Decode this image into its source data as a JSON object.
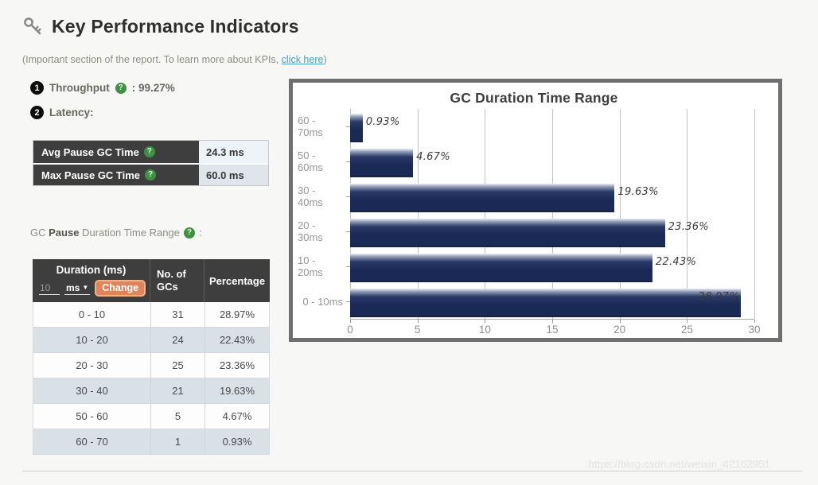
{
  "page": {
    "title": "Key Performance Indicators",
    "subtitle_prefix": "(Important section of the report. To learn more about KPIs, ",
    "subtitle_link": "click here",
    "subtitle_suffix": ")",
    "watermark": "https://blog.csdn.net/weixin_42162951"
  },
  "kpi": {
    "badge1": "1",
    "badge2": "2",
    "throughput_label": "Throughput",
    "throughput_value": ": 99.27%",
    "latency_label": "Latency:",
    "help_glyph": "?"
  },
  "latency_table": {
    "rows": [
      {
        "label": "Avg Pause GC Time",
        "value": "24.3 ms"
      },
      {
        "label": "Max Pause GC Time",
        "value": "60.0 ms"
      }
    ]
  },
  "duration_heading": {
    "part1": "GC ",
    "bold": "Pause",
    "part2": " Duration Time Range",
    "colon": ":"
  },
  "duration_table": {
    "col1_header": "Duration (ms)",
    "input_value": "10",
    "unit_selected": "ms",
    "caret": "▼",
    "change_button": "Change",
    "col2_header": "No. of GCs",
    "col3_header": "Percentage",
    "rows": [
      {
        "duration": "0 - 10",
        "count": "31",
        "pct": "28.97%"
      },
      {
        "duration": "10 - 20",
        "count": "24",
        "pct": "22.43%"
      },
      {
        "duration": "20 - 30",
        "count": "25",
        "pct": "23.36%"
      },
      {
        "duration": "30 - 40",
        "count": "21",
        "pct": "19.63%"
      },
      {
        "duration": "50 - 60",
        "count": "5",
        "pct": "4.67%"
      },
      {
        "duration": "60 - 70",
        "count": "1",
        "pct": "0.93%"
      }
    ]
  },
  "chart_data": {
    "type": "bar",
    "orientation": "horizontal",
    "title": "GC Duration Time Range",
    "categories": [
      "60 - 70ms",
      "50 - 60ms",
      "30 - 40ms",
      "20 - 30ms",
      "10 - 20ms",
      "0 - 10ms"
    ],
    "values": [
      0.93,
      4.67,
      19.63,
      23.36,
      22.43,
      28.97
    ],
    "labels": [
      "0.93%",
      "4.67%",
      "19.63%",
      "23.36%",
      "22.43%",
      "28.97%"
    ],
    "xlabel": "",
    "ylabel": "",
    "xlim": [
      0,
      30
    ],
    "xticks": [
      0,
      5,
      10,
      15,
      20,
      25,
      30
    ],
    "grid": true,
    "legend": false,
    "bar_color": "#1b2a55"
  },
  "colors": {
    "header_dark": "#3e3e3e",
    "bar_navy": "#1b2a55",
    "accent_orange": "#df855c",
    "link_teal": "#4aa0b5",
    "help_green": "#3e9143",
    "row_alt_blue": "#d9e0e6"
  }
}
